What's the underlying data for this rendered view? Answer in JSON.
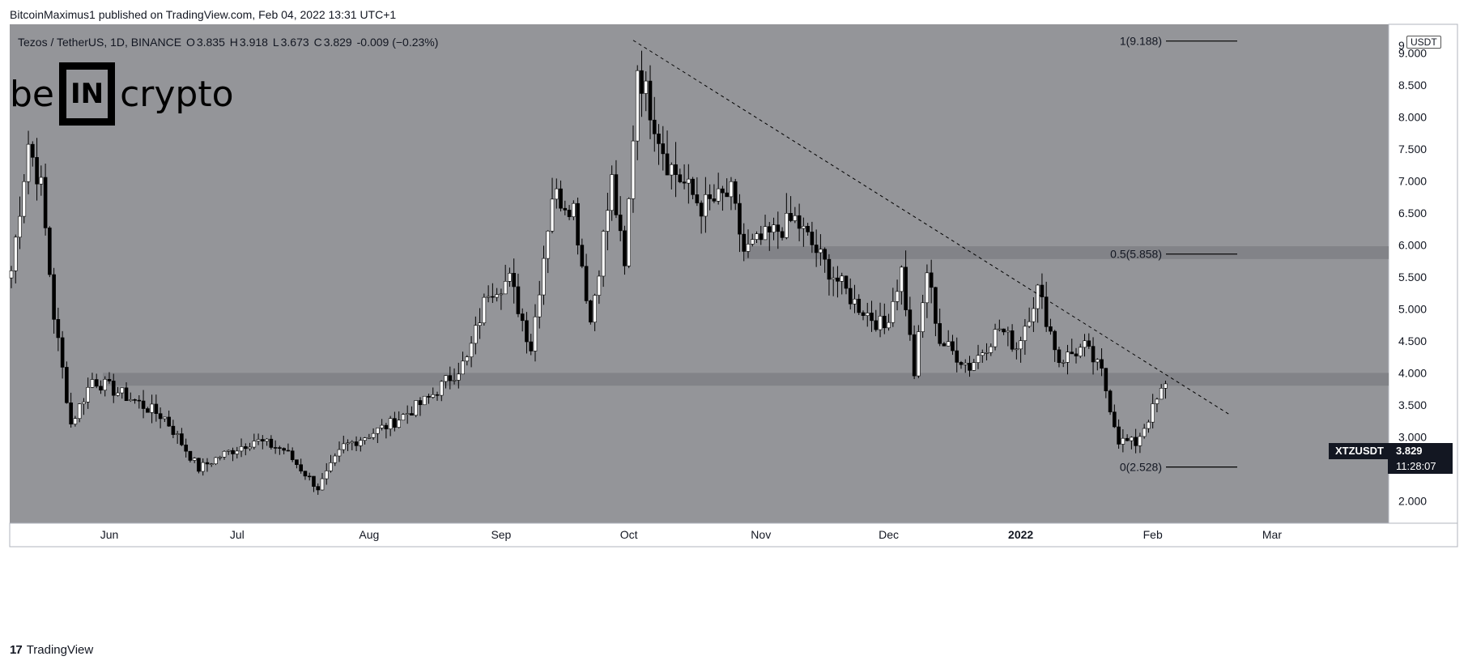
{
  "header": {
    "publisher": "BitcoinMaximus1 published on TradingView.com, Feb 04, 2022 13:31 UTC+1"
  },
  "footer": {
    "logo_text": "17",
    "brand": "TradingView"
  },
  "legend": {
    "symbol": "Tezos / TetherUS, 1D, BINANCE",
    "o_label": "O",
    "o": "3.835",
    "h_label": "H",
    "h": "3.918",
    "l_label": "L",
    "l": "3.673",
    "c_label": "C",
    "c": "3.829",
    "change": "-0.009 (−0.23%)"
  },
  "watermark": {
    "left": "be",
    "box": "IN",
    "right": "crypto"
  },
  "axis": {
    "currency": "USDT",
    "last_symbol": "XTZUSDT",
    "last_price": "3.829",
    "countdown": "11:28:07"
  },
  "colors": {
    "chart_bg": "#949599",
    "up": "#ffffff",
    "down": "#000000",
    "zone": "#7f8085"
  },
  "chart_data": {
    "type": "candlestick",
    "title": "Tezos / TetherUS, 1D, BINANCE",
    "ylim": [
      1.65,
      9.45
    ],
    "y_ticks": [
      "2.000",
      "2.500",
      "3.000",
      "3.500",
      "4.000",
      "4.500",
      "5.000",
      "5.500",
      "6.000",
      "6.500",
      "7.000",
      "7.500",
      "8.000",
      "8.500",
      "9.000",
      "9"
    ],
    "x_labels": [
      "Jun",
      "Jul",
      "Aug",
      "Sep",
      "Oct",
      "Nov",
      "Dec",
      "2022",
      "Jan",
      "Feb",
      "Mar"
    ],
    "resistance_zones": [
      {
        "low": 3.8,
        "high": 4.0
      },
      {
        "low": 5.78,
        "high": 5.98
      }
    ],
    "fib_levels": [
      {
        "label": "1(9.188)",
        "value": 9.188
      },
      {
        "label": "0.5(5.858)",
        "value": 5.858
      },
      {
        "label": "0(2.528)",
        "value": 2.528
      }
    ],
    "trendline": {
      "start": {
        "date": "2021-10-02",
        "price": 9.2
      },
      "end": {
        "date": "2022-02-19",
        "price": 3.35
      },
      "style": "dashed"
    },
    "anchors": [
      {
        "date": "2021-05-09",
        "close": 5.6
      },
      {
        "date": "2021-05-13",
        "close": 7.6
      },
      {
        "date": "2021-05-16",
        "close": 6.9
      },
      {
        "date": "2021-05-19",
        "close": 4.9
      },
      {
        "date": "2021-05-23",
        "close": 3.2
      },
      {
        "date": "2021-05-28",
        "close": 3.9
      },
      {
        "date": "2021-06-06",
        "close": 3.6
      },
      {
        "date": "2021-06-14",
        "close": 3.3
      },
      {
        "date": "2021-06-22",
        "close": 2.5
      },
      {
        "date": "2021-06-27",
        "close": 2.7
      },
      {
        "date": "2021-07-05",
        "close": 2.95
      },
      {
        "date": "2021-07-12",
        "close": 2.8
      },
      {
        "date": "2021-07-20",
        "close": 2.2
      },
      {
        "date": "2021-07-26",
        "close": 2.85
      },
      {
        "date": "2021-08-06",
        "close": 3.2
      },
      {
        "date": "2021-08-15",
        "close": 3.6
      },
      {
        "date": "2021-08-24",
        "close": 4.2
      },
      {
        "date": "2021-08-29",
        "close": 5.3
      },
      {
        "date": "2021-09-03",
        "close": 5.45
      },
      {
        "date": "2021-09-08",
        "close": 4.4
      },
      {
        "date": "2021-09-13",
        "close": 6.8
      },
      {
        "date": "2021-09-18",
        "close": 6.6
      },
      {
        "date": "2021-09-22",
        "close": 4.8
      },
      {
        "date": "2021-09-27",
        "close": 7.0
      },
      {
        "date": "2021-09-30",
        "close": 5.6
      },
      {
        "date": "2021-10-03",
        "close": 8.8
      },
      {
        "date": "2021-10-10",
        "close": 7.3
      },
      {
        "date": "2021-10-18",
        "close": 6.6
      },
      {
        "date": "2021-10-25",
        "close": 6.8
      },
      {
        "date": "2021-10-28",
        "close": 5.9
      },
      {
        "date": "2021-11-09",
        "close": 6.4
      },
      {
        "date": "2021-11-16",
        "close": 5.7
      },
      {
        "date": "2021-11-23",
        "close": 5.1
      },
      {
        "date": "2021-11-30",
        "close": 4.7
      },
      {
        "date": "2021-12-04",
        "close": 5.6
      },
      {
        "date": "2021-12-07",
        "close": 4.0
      },
      {
        "date": "2021-12-10",
        "close": 5.6
      },
      {
        "date": "2021-12-13",
        "close": 4.5
      },
      {
        "date": "2021-12-20",
        "close": 4.1
      },
      {
        "date": "2021-12-27",
        "close": 4.7
      },
      {
        "date": "2021-12-31",
        "close": 4.4
      },
      {
        "date": "2022-01-05",
        "close": 5.3
      },
      {
        "date": "2022-01-10",
        "close": 4.2
      },
      {
        "date": "2022-01-16",
        "close": 4.4
      },
      {
        "date": "2022-01-20",
        "close": 4.0
      },
      {
        "date": "2022-01-24",
        "close": 2.95
      },
      {
        "date": "2022-01-28",
        "close": 2.9
      },
      {
        "date": "2022-02-04",
        "close": 3.829
      }
    ]
  }
}
